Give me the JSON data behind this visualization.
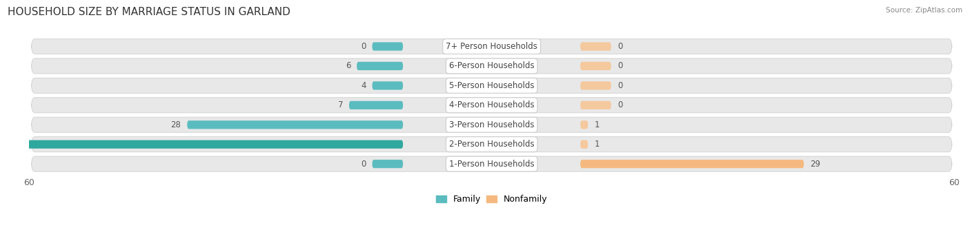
{
  "title": "HOUSEHOLD SIZE BY MARRIAGE STATUS IN GARLAND",
  "source": "Source: ZipAtlas.com",
  "categories": [
    "7+ Person Households",
    "6-Person Households",
    "5-Person Households",
    "4-Person Households",
    "3-Person Households",
    "2-Person Households",
    "1-Person Households"
  ],
  "family_values": [
    0,
    6,
    4,
    7,
    28,
    53,
    0
  ],
  "nonfamily_values": [
    0,
    0,
    0,
    0,
    1,
    1,
    29
  ],
  "family_color": "#5bbcbf",
  "family_color_dark": "#2fa89e",
  "nonfamily_color": "#f5b97f",
  "nonfamily_color_light": "#f5c99e",
  "xlim": 60,
  "min_bar_stub": 4,
  "row_bg_color": "#e8e8e8",
  "row_bg_edge_color": "#d0d0d0",
  "title_fontsize": 11,
  "label_fontsize": 8.5,
  "value_fontsize": 8.5,
  "tick_fontsize": 9,
  "legend_fontsize": 9
}
